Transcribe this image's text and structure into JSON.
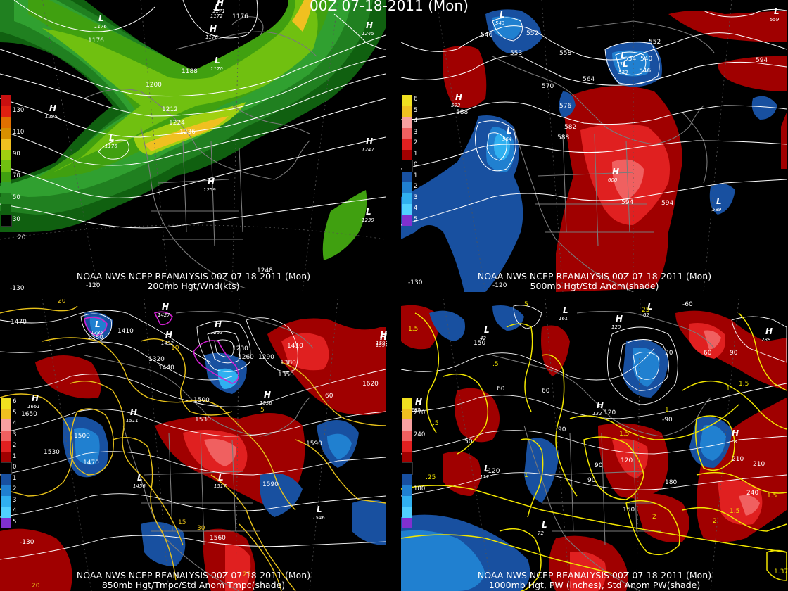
{
  "page_title": "00Z 07-18-2011 (Mon)",
  "colors": {
    "background": "#000000",
    "land_outline": "#7a7a7a",
    "contour": "#ffffff",
    "temp_contour": "#e8c21a",
    "pw_contour": "#f2e600",
    "freezing_contour": "#d020d0"
  },
  "panels": [
    {
      "id": "p200",
      "caption_line1": "NOAA NWS NCEP REANALYSIS 00Z 07-18-2011 (Mon)",
      "caption_line2": "200mb Hgt/Wnd(kts)",
      "legend": [
        {
          "label": "",
          "color": "#c81010"
        },
        {
          "label": "130",
          "color": "#e02010"
        },
        {
          "label": "",
          "color": "#e07000"
        },
        {
          "label": "110",
          "color": "#d89000"
        },
        {
          "label": "",
          "color": "#f0c020"
        },
        {
          "label": "90",
          "color": "#a0d010"
        },
        {
          "label": "",
          "color": "#70c010"
        },
        {
          "label": "70",
          "color": "#40a010"
        },
        {
          "label": "",
          "color": "#30a030"
        },
        {
          "label": "50",
          "color": "#208020"
        },
        {
          "label": "",
          "color": "#106010"
        },
        {
          "label": "30",
          "color": "#000000"
        }
      ],
      "pressure_labels": [
        {
          "text": "1171",
          "kind": "H"
        },
        {
          "text": "1176",
          "kind": "L"
        },
        {
          "text": "1245",
          "kind": "H"
        },
        {
          "text": "1235",
          "kind": "H"
        },
        {
          "text": "1176",
          "kind": "L"
        },
        {
          "text": "1247",
          "kind": "H"
        },
        {
          "text": "1259",
          "kind": "H"
        },
        {
          "text": "1239",
          "kind": "L"
        },
        {
          "text": "1176",
          "kind": "H"
        },
        {
          "text": "1172",
          "kind": "L"
        },
        {
          "text": "1170",
          "kind": "L"
        }
      ],
      "contour_labels": [
        "1176",
        "1188",
        "1200",
        "1212",
        "1224",
        "1236",
        "1176",
        "1248",
        "20",
        "-130",
        "-120"
      ]
    },
    {
      "id": "p500",
      "caption_line1": "NOAA NWS NCEP REANALYSIS 00Z 07-18-2011 (Mon)",
      "caption_line2": "500mb Hgt/Std Anom(shade)",
      "legend": [
        {
          "label": "6",
          "color": "#f0e020"
        },
        {
          "label": "5",
          "color": "#f0c020"
        },
        {
          "label": "4",
          "color": "#f8a0a0"
        },
        {
          "label": "3",
          "color": "#f06060"
        },
        {
          "label": "2",
          "color": "#e02020"
        },
        {
          "label": "1",
          "color": "#a00000"
        },
        {
          "label": "0",
          "color": "#000000"
        },
        {
          "label": "1",
          "color": "#1850a0"
        },
        {
          "label": "2",
          "color": "#2080d0"
        },
        {
          "label": "3",
          "color": "#30b0f0"
        },
        {
          "label": "4",
          "color": "#50d0ff"
        },
        {
          "label": "5",
          "color": "#8030d0"
        }
      ],
      "pressure_labels": [
        {
          "text": "543",
          "kind": "L"
        },
        {
          "text": "538",
          "kind": "L"
        },
        {
          "text": "533",
          "kind": "L"
        },
        {
          "text": "592",
          "kind": "H"
        },
        {
          "text": "564",
          "kind": "L"
        },
        {
          "text": "600",
          "kind": "H"
        },
        {
          "text": "589",
          "kind": "L"
        },
        {
          "text": "559",
          "kind": "L"
        }
      ],
      "contour_labels": [
        "546",
        "552",
        "553",
        "558",
        "564",
        "570",
        "576",
        "582",
        "588",
        "594",
        "534",
        "540",
        "546",
        "552",
        "594",
        "588",
        "594",
        "-130",
        "-120"
      ]
    },
    {
      "id": "p850",
      "caption_line1": "NOAA NWS NCEP REANALYSIS 00Z 07-18-2011 (Mon)",
      "caption_line2": "850mb Hgt/Tmpc/Std Anom Tmpc(shade)",
      "legend": [
        {
          "label": "6",
          "color": "#f0e020"
        },
        {
          "label": "5",
          "color": "#f0c020"
        },
        {
          "label": "4",
          "color": "#f8a0a0"
        },
        {
          "label": "3",
          "color": "#f06060"
        },
        {
          "label": "2",
          "color": "#e02020"
        },
        {
          "label": "1",
          "color": "#a00000"
        },
        {
          "label": "0",
          "color": "#000000"
        },
        {
          "label": "1",
          "color": "#1850a0"
        },
        {
          "label": "2",
          "color": "#2080d0"
        },
        {
          "label": "3",
          "color": "#30b0f0"
        },
        {
          "label": "4",
          "color": "#50d0ff"
        },
        {
          "label": "5",
          "color": "#8030d0"
        }
      ],
      "pressure_labels": [
        {
          "text": "1385",
          "kind": "L"
        },
        {
          "text": "1427",
          "kind": "H"
        },
        {
          "text": "1432",
          "kind": "H"
        },
        {
          "text": "1253",
          "kind": "H"
        },
        {
          "text": "1661",
          "kind": "H"
        },
        {
          "text": "1511",
          "kind": "H"
        },
        {
          "text": "1456",
          "kind": "L"
        },
        {
          "text": "1517",
          "kind": "L"
        },
        {
          "text": "1536",
          "kind": "H"
        },
        {
          "text": "1546",
          "kind": "L"
        },
        {
          "text": "1597",
          "kind": "H"
        },
        {
          "text": "1597",
          "kind": "H"
        }
      ],
      "contour_labels": [
        "1470",
        "1410",
        "1380",
        "1440",
        "1500",
        "1530",
        "1500",
        "1470",
        "1590",
        "1590",
        "1560",
        "1620",
        "1650",
        "1530",
        "1350",
        "1380",
        "1410",
        "1230",
        "1260",
        "1290",
        "1320",
        "10",
        "5",
        "15",
        "30",
        "25",
        "20",
        "-130",
        "20",
        "60"
      ]
    },
    {
      "id": "p1000",
      "caption_line1": "NOAA NWS NCEP REANALYSIS 00Z 07-18-2011 (Mon)",
      "caption_line2": "1000mb Hgt, PW (inches), Std Anom PW(shade)",
      "legend": [
        {
          "label": "",
          "color": "#f0e020"
        },
        {
          "label": "270",
          "color": "#f0c020"
        },
        {
          "label": "",
          "color": "#f8a0a0"
        },
        {
          "label": "240",
          "color": "#f06060"
        },
        {
          "label": "",
          "color": "#e02020"
        },
        {
          "label": "",
          "color": "#a00000"
        },
        {
          "label": "",
          "color": "#000000"
        },
        {
          "label": "",
          "color": "#1850a0"
        },
        {
          "label": "180",
          "color": "#2080d0"
        },
        {
          "label": "",
          "color": "#30b0f0"
        },
        {
          "label": "",
          "color": "#50d0ff"
        },
        {
          "label": "",
          "color": "#8030d0"
        }
      ],
      "pressure_labels": [
        {
          "text": "161",
          "kind": "L"
        },
        {
          "text": "62",
          "kind": "L"
        },
        {
          "text": "42",
          "kind": "L"
        },
        {
          "text": "120",
          "kind": "H"
        },
        {
          "text": "288",
          "kind": "H"
        },
        {
          "text": "287",
          "kind": "H"
        },
        {
          "text": "132",
          "kind": "H"
        },
        {
          "text": "218",
          "kind": "H"
        },
        {
          "text": "112",
          "kind": "L"
        },
        {
          "text": "72",
          "kind": "L"
        }
      ],
      "contour_labels": [
        "1.5",
        "5",
        "25",
        ".5",
        "150",
        "60",
        "60",
        "90",
        "120",
        "90",
        "50",
        "-120",
        "120",
        "90",
        "150",
        "180",
        "210",
        "240",
        "210",
        "30",
        "60",
        "90",
        "1.5",
        "1.5",
        ".5",
        ".25",
        "1",
        "2",
        "2",
        "1.5",
        "1.5",
        "1",
        "-90",
        "-60",
        "1.37",
        "1"
      ]
    }
  ]
}
